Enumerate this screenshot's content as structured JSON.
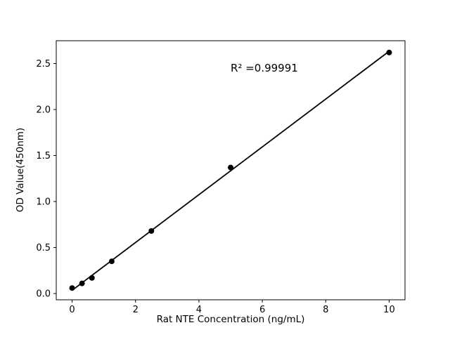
{
  "chart_data": {
    "type": "scatter",
    "title": "",
    "xlabel": "Rat NTE Concentration (ng/mL)",
    "ylabel": "OD Value(450nm)",
    "annotation": "R² =0.99991",
    "annotation_pos": {
      "x": 5.0,
      "y": 2.42
    },
    "x": [
      0,
      0.3125,
      0.625,
      1.25,
      2.5,
      5,
      10
    ],
    "y": [
      0.06,
      0.11,
      0.17,
      0.35,
      0.68,
      1.37,
      2.62
    ],
    "fit": "linear",
    "xticks": [
      0,
      2,
      4,
      6,
      8,
      10
    ],
    "xtick_labels": [
      "0",
      "2",
      "4",
      "6",
      "8",
      "10"
    ],
    "yticks": [
      0.0,
      0.5,
      1.0,
      1.5,
      2.0,
      2.5
    ],
    "ytick_labels": [
      "0.0",
      "0.5",
      "1.0",
      "1.5",
      "2.0",
      "2.5"
    ],
    "xlim": [
      -0.5,
      10.5
    ],
    "ylim": [
      -0.068,
      2.748
    ],
    "grid": false,
    "legend": false,
    "marker_color": "#000000",
    "line_color": "#000000",
    "axis_color": "#000000",
    "background": "#ffffff"
  }
}
